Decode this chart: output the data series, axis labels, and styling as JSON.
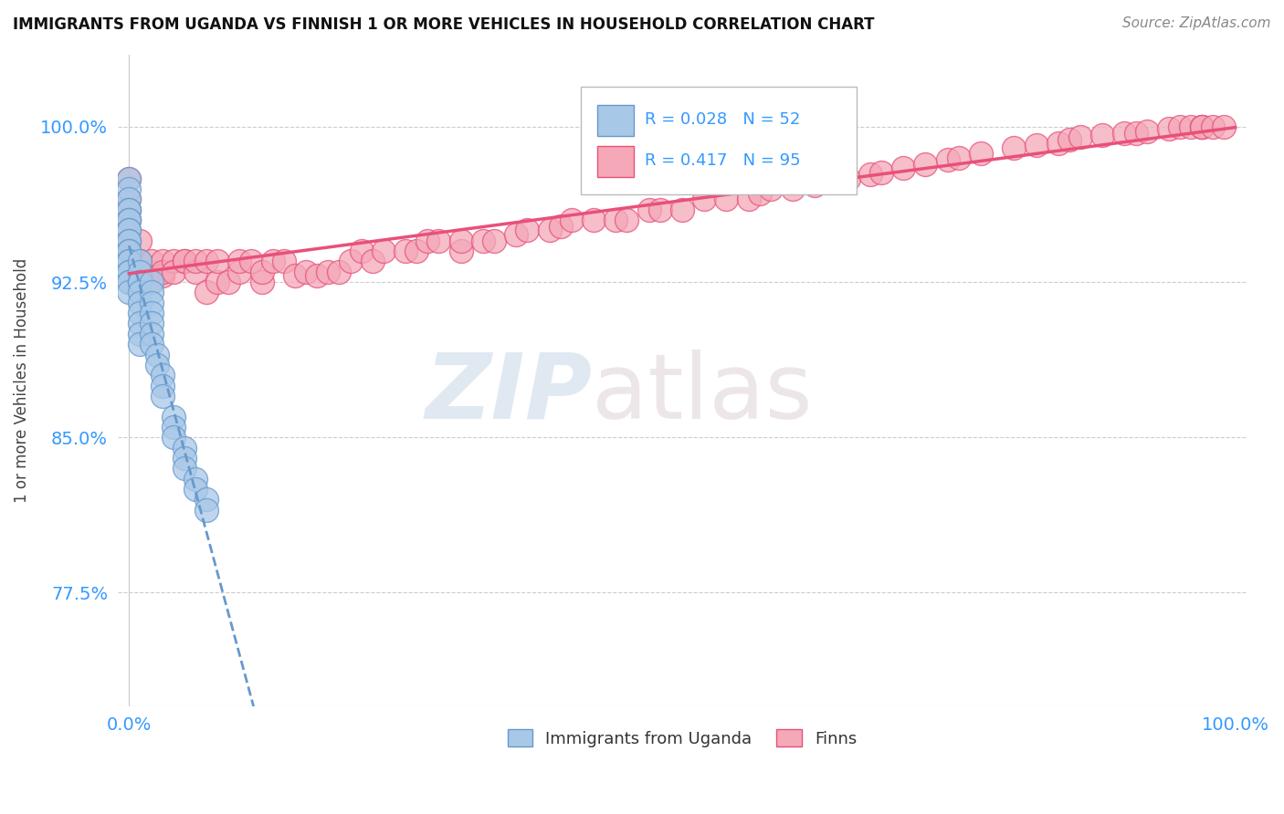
{
  "title": "IMMIGRANTS FROM UGANDA VS FINNISH 1 OR MORE VEHICLES IN HOUSEHOLD CORRELATION CHART",
  "source": "Source: ZipAtlas.com",
  "ylabel": "1 or more Vehicles in Household",
  "xlim": [
    0.0,
    1.0
  ],
  "ylim": [
    0.72,
    1.035
  ],
  "yticks": [
    0.775,
    0.85,
    0.925,
    1.0
  ],
  "ytick_labels": [
    "77.5%",
    "85.0%",
    "92.5%",
    "100.0%"
  ],
  "xtick_labels": [
    "0.0%",
    "100.0%"
  ],
  "legend_labels": [
    "Immigrants from Uganda",
    "Finns"
  ],
  "R_uganda": 0.028,
  "N_uganda": 52,
  "R_finns": 0.417,
  "N_finns": 95,
  "color_uganda": "#a8c8e8",
  "color_finns": "#f4a8b8",
  "trend_color_uganda": "#6699cc",
  "trend_color_finns": "#e8507a",
  "background_color": "#ffffff",
  "watermark_zip": "ZIP",
  "watermark_atlas": "atlas",
  "uganda_x": [
    0.0,
    0.0,
    0.0,
    0.0,
    0.0,
    0.0,
    0.0,
    0.0,
    0.0,
    0.0,
    0.0,
    0.0,
    0.0,
    0.0,
    0.0,
    0.0,
    0.0,
    0.0,
    0.0,
    0.0,
    0.01,
    0.01,
    0.01,
    0.01,
    0.01,
    0.01,
    0.01,
    0.01,
    0.01,
    0.01,
    0.02,
    0.02,
    0.02,
    0.02,
    0.02,
    0.02,
    0.02,
    0.025,
    0.025,
    0.03,
    0.03,
    0.03,
    0.04,
    0.04,
    0.04,
    0.05,
    0.05,
    0.05,
    0.06,
    0.06,
    0.07,
    0.07
  ],
  "uganda_y": [
    0.975,
    0.97,
    0.965,
    0.96,
    0.96,
    0.955,
    0.955,
    0.95,
    0.95,
    0.945,
    0.945,
    0.94,
    0.94,
    0.935,
    0.935,
    0.93,
    0.93,
    0.925,
    0.925,
    0.92,
    0.935,
    0.93,
    0.925,
    0.925,
    0.92,
    0.915,
    0.91,
    0.905,
    0.9,
    0.895,
    0.925,
    0.92,
    0.915,
    0.91,
    0.905,
    0.9,
    0.895,
    0.89,
    0.885,
    0.88,
    0.875,
    0.87,
    0.86,
    0.855,
    0.85,
    0.845,
    0.84,
    0.835,
    0.83,
    0.825,
    0.82,
    0.815
  ],
  "finns_x": [
    0.0,
    0.0,
    0.0,
    0.0,
    0.0,
    0.0,
    0.01,
    0.01,
    0.01,
    0.01,
    0.02,
    0.02,
    0.02,
    0.03,
    0.03,
    0.03,
    0.04,
    0.04,
    0.05,
    0.05,
    0.06,
    0.06,
    0.07,
    0.07,
    0.08,
    0.08,
    0.09,
    0.1,
    0.1,
    0.11,
    0.12,
    0.12,
    0.13,
    0.14,
    0.15,
    0.16,
    0.17,
    0.18,
    0.19,
    0.2,
    0.21,
    0.22,
    0.23,
    0.25,
    0.26,
    0.27,
    0.28,
    0.3,
    0.3,
    0.32,
    0.33,
    0.35,
    0.36,
    0.38,
    0.39,
    0.4,
    0.42,
    0.44,
    0.45,
    0.47,
    0.48,
    0.5,
    0.52,
    0.54,
    0.56,
    0.57,
    0.58,
    0.6,
    0.62,
    0.64,
    0.65,
    0.67,
    0.68,
    0.7,
    0.72,
    0.74,
    0.75,
    0.77,
    0.8,
    0.82,
    0.84,
    0.85,
    0.86,
    0.88,
    0.9,
    0.91,
    0.92,
    0.94,
    0.95,
    0.96,
    0.97,
    0.97,
    0.97,
    0.98,
    0.99
  ],
  "finns_y": [
    0.975,
    0.965,
    0.96,
    0.955,
    0.945,
    0.94,
    0.945,
    0.935,
    0.935,
    0.93,
    0.93,
    0.925,
    0.935,
    0.935,
    0.928,
    0.93,
    0.935,
    0.93,
    0.935,
    0.935,
    0.93,
    0.935,
    0.935,
    0.92,
    0.925,
    0.935,
    0.925,
    0.93,
    0.935,
    0.935,
    0.925,
    0.93,
    0.935,
    0.935,
    0.928,
    0.93,
    0.928,
    0.93,
    0.93,
    0.935,
    0.94,
    0.935,
    0.94,
    0.94,
    0.94,
    0.945,
    0.945,
    0.94,
    0.945,
    0.945,
    0.945,
    0.948,
    0.95,
    0.95,
    0.952,
    0.955,
    0.955,
    0.955,
    0.955,
    0.96,
    0.96,
    0.96,
    0.965,
    0.965,
    0.965,
    0.968,
    0.97,
    0.97,
    0.972,
    0.975,
    0.975,
    0.977,
    0.978,
    0.98,
    0.982,
    0.984,
    0.985,
    0.987,
    0.99,
    0.991,
    0.992,
    0.994,
    0.995,
    0.996,
    0.997,
    0.997,
    0.998,
    0.999,
    1.0,
    1.0,
    1.0,
    1.0,
    1.0,
    1.0,
    1.0
  ]
}
